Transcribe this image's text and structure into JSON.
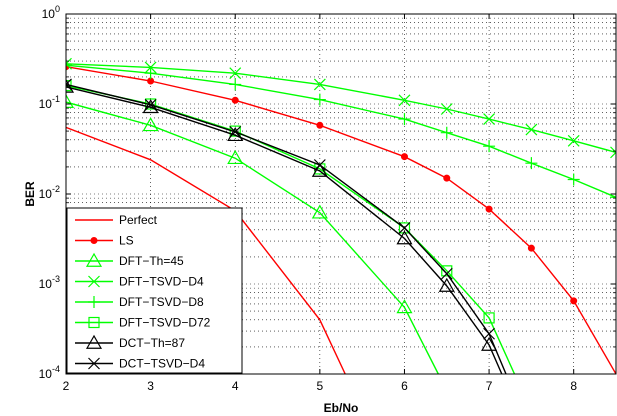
{
  "chart_data": {
    "type": "line",
    "xlabel": "Eb/No",
    "ylabel": "BER",
    "xlim": [
      2,
      8.5
    ],
    "ylim": [
      0.0001,
      1
    ],
    "y_scale": "log",
    "grid": true,
    "legend_position": "bottom-left",
    "x_ticks": [
      "2",
      "3",
      "4",
      "5",
      "6",
      "7",
      "8"
    ],
    "y_ticks": [
      {
        "base": "10",
        "exp": "0",
        "value": 1
      },
      {
        "base": "10",
        "exp": "-1",
        "value": 0.1
      },
      {
        "base": "10",
        "exp": "-2",
        "value": 0.01
      },
      {
        "base": "10",
        "exp": "-3",
        "value": 0.001
      },
      {
        "base": "10",
        "exp": "-4",
        "value": 0.0001
      }
    ],
    "series": [
      {
        "name": "Perfect",
        "color": "#ff0000",
        "marker": "none",
        "x": [
          2,
          3,
          4,
          5,
          5.3
        ],
        "y": [
          0.055,
          0.024,
          0.0065,
          0.0004,
          0.0001
        ]
      },
      {
        "name": "LS",
        "color": "#ff0000",
        "marker": "dot",
        "x": [
          2,
          3,
          4,
          5,
          6,
          6.5,
          7,
          7.5,
          8,
          8.5
        ],
        "y": [
          0.26,
          0.18,
          0.11,
          0.058,
          0.026,
          0.015,
          0.0068,
          0.0025,
          0.00065,
          0.0001
        ]
      },
      {
        "name": "DFT−Th=45",
        "color": "#00ff00",
        "marker": "triangle",
        "x": [
          2,
          3,
          4,
          5,
          6,
          6.4
        ],
        "y": [
          0.105,
          0.058,
          0.025,
          0.0062,
          0.00055,
          0.0001
        ]
      },
      {
        "name": "DFT−TSVD−D4",
        "color": "#00ff00",
        "marker": "x",
        "x": [
          2,
          3,
          4,
          5,
          6,
          6.5,
          7,
          7.5,
          8,
          8.5
        ],
        "y": [
          0.28,
          0.255,
          0.22,
          0.165,
          0.11,
          0.088,
          0.068,
          0.052,
          0.039,
          0.029
        ]
      },
      {
        "name": "DFT−TSVD−D8",
        "color": "#00ff00",
        "marker": "plus",
        "x": [
          2,
          3,
          4,
          5,
          6,
          6.5,
          7,
          7.5,
          8,
          8.5
        ],
        "y": [
          0.27,
          0.22,
          0.165,
          0.112,
          0.068,
          0.048,
          0.034,
          0.022,
          0.0145,
          0.0092
        ]
      },
      {
        "name": "DFT−TSVD−D72",
        "color": "#00ff00",
        "marker": "square",
        "x": [
          2,
          3,
          4,
          5,
          6,
          6.5,
          7,
          7.3
        ],
        "y": [
          0.16,
          0.1,
          0.05,
          0.019,
          0.0042,
          0.0014,
          0.00042,
          0.0001
        ]
      },
      {
        "name": "DCT−Th=87",
        "color": "#000000",
        "marker": "triangle",
        "x": [
          2,
          3,
          4,
          5,
          6,
          6.5,
          7,
          7.15
        ],
        "y": [
          0.155,
          0.092,
          0.045,
          0.018,
          0.0032,
          0.00095,
          0.00021,
          0.0001
        ]
      },
      {
        "name": "DCT−TSVD−D4",
        "color": "#000000",
        "marker": "x",
        "x": [
          2,
          3,
          4,
          5,
          6,
          6.5,
          7,
          7.2
        ],
        "y": [
          0.165,
          0.098,
          0.049,
          0.021,
          0.0042,
          0.0013,
          0.00028,
          0.0001
        ]
      }
    ]
  }
}
